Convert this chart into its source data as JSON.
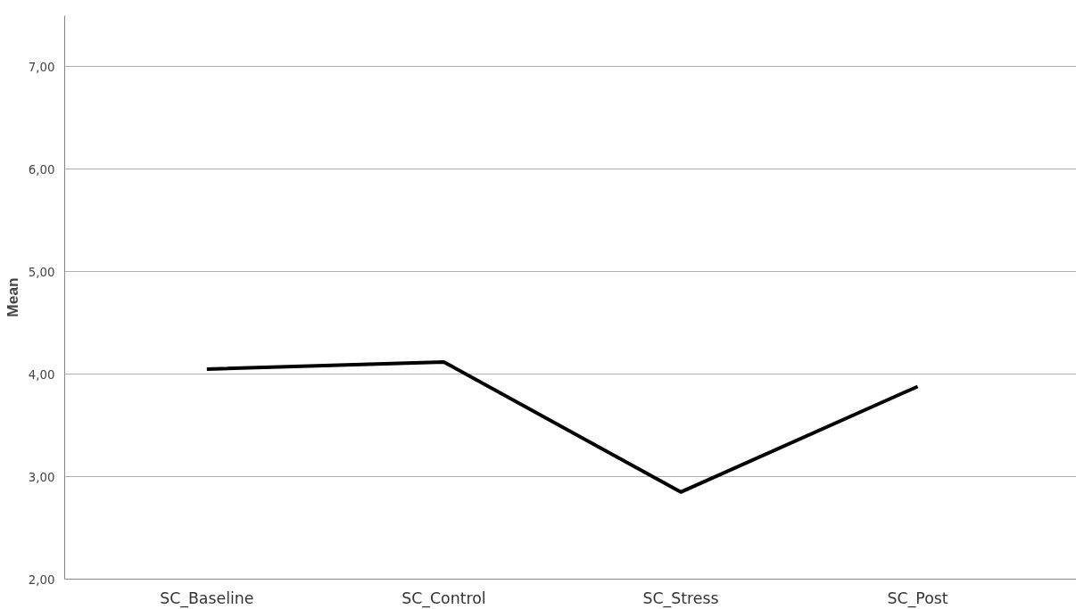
{
  "chart_data": {
    "type": "line",
    "ylabel": "Mean",
    "categories": [
      "SC_Baseline",
      "SC_Control",
      "SC_Stress",
      "SC_Post"
    ],
    "series": [
      {
        "color": "#000000",
        "values": [
          4.05,
          4.12,
          2.85,
          3.88
        ]
      }
    ],
    "ylim": [
      2,
      7.5
    ],
    "yticks": [
      {
        "value": 2,
        "label": "2,00"
      },
      {
        "value": 3,
        "label": "3,00"
      },
      {
        "value": 4,
        "label": "4,00"
      },
      {
        "value": 5,
        "label": "5,00"
      },
      {
        "value": 6,
        "label": "6,00"
      },
      {
        "value": 7,
        "label": "7,00"
      }
    ],
    "grid": "y",
    "marker": "none",
    "line_style": "solid"
  }
}
